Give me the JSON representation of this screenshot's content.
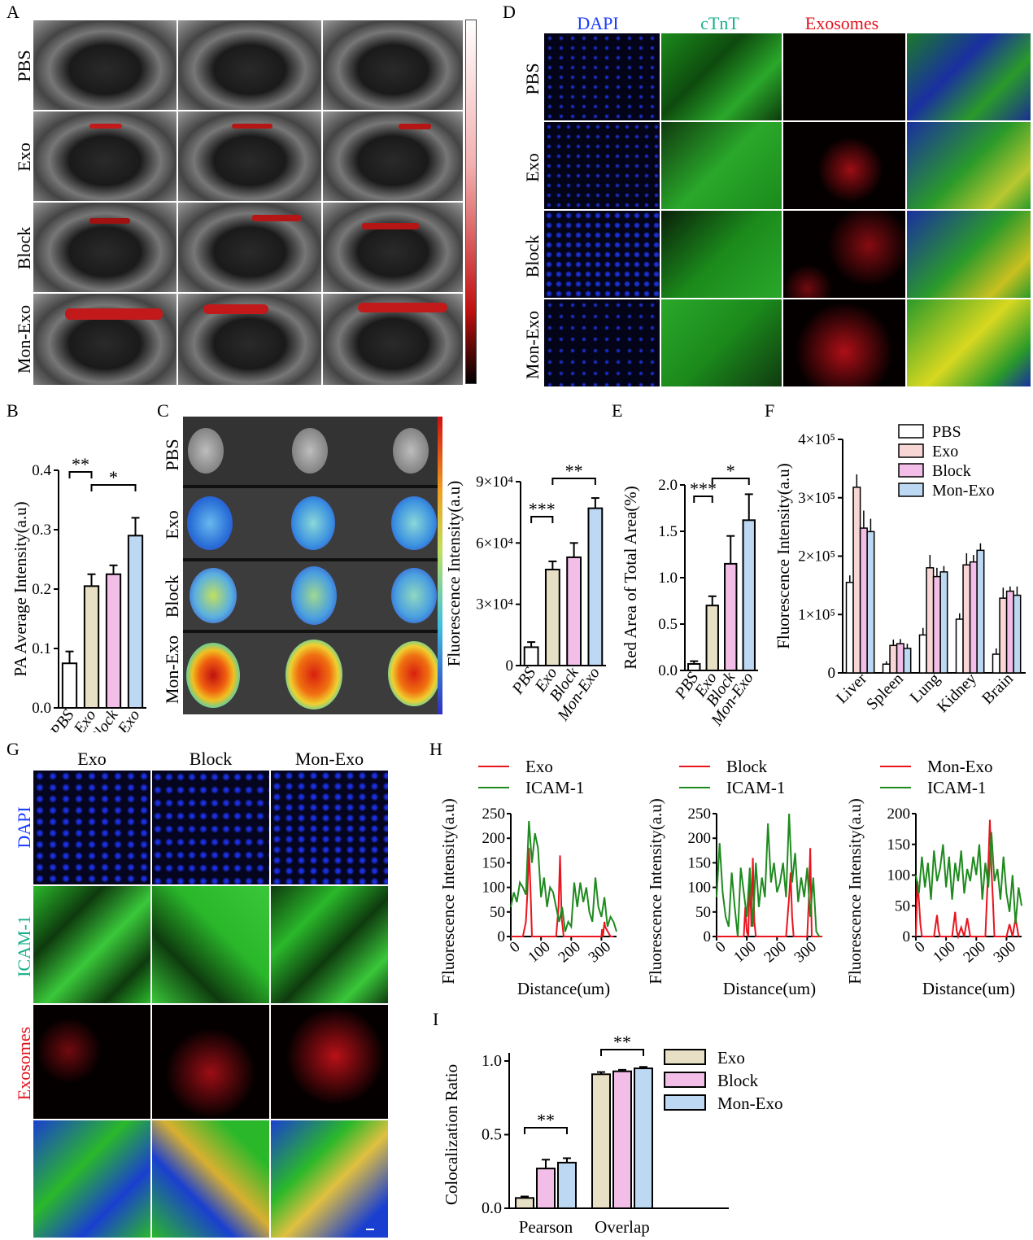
{
  "panels": {
    "A": {
      "label": "A",
      "rows": [
        "PBS",
        "Exo",
        "Block",
        "Mon-Exo"
      ]
    },
    "B": {
      "label": "B"
    },
    "C": {
      "label": "C",
      "rows": [
        "PBS",
        "Exo",
        "Block",
        "Mon-Exo"
      ],
      "colorbar_label": "Fluorescence Intensity(a.u)"
    },
    "D": {
      "label": "D",
      "cols": [
        "DAPI",
        "cTnT",
        "Exosomes"
      ],
      "rows": [
        "PBS",
        "Exo",
        "Block",
        "Mon-Exo"
      ],
      "col_colors": [
        "#1a3cff",
        "#18b08a",
        "#e0141e"
      ]
    },
    "E": {
      "label": "E"
    },
    "F": {
      "label": "F"
    },
    "G": {
      "label": "G",
      "cols": [
        "Exo",
        "Block",
        "Mon-Exo"
      ],
      "rows": [
        "DAPI",
        "ICAM-1",
        "Exosomes"
      ],
      "row_colors": [
        "#1a3cff",
        "#18b08a",
        "#e0141e"
      ]
    },
    "H": {
      "label": "H"
    },
    "I": {
      "label": "I"
    }
  },
  "chart_data": [
    {
      "id": "B",
      "type": "bar",
      "ylabel": "PA Average Intensity(a.u)",
      "categories": [
        "PBS",
        "Exo",
        "Block",
        "Mon-Exo"
      ],
      "values": [
        0.075,
        0.205,
        0.225,
        0.29
      ],
      "errors": [
        0.02,
        0.02,
        0.015,
        0.03
      ],
      "colors": [
        "#ffffff",
        "#e8e0c4",
        "#f2bde6",
        "#bcd8f2"
      ],
      "ylim": [
        0,
        0.4
      ],
      "yticks": [
        "0.0",
        "0.1",
        "0.2",
        "0.3",
        "0.4"
      ],
      "significance": [
        {
          "from": 0,
          "to": 1,
          "label": "**"
        },
        {
          "from": 1,
          "to": 3,
          "label": "*"
        }
      ]
    },
    {
      "id": "C",
      "type": "bar",
      "ylabel": "Fluorescence Intensity(a.u)",
      "categories": [
        "PBS",
        "Exo",
        "Block",
        "Mon-Exo"
      ],
      "values": [
        9000,
        47000,
        53000,
        77000
      ],
      "errors": [
        2500,
        4000,
        7000,
        5000
      ],
      "colors": [
        "#ffffff",
        "#e8e0c4",
        "#f2bde6",
        "#bcd8f2"
      ],
      "ylim": [
        0,
        90000
      ],
      "yticks": [
        "0",
        "3×10⁴",
        "6×10⁴",
        "9×10⁴"
      ],
      "significance": [
        {
          "from": 0,
          "to": 1,
          "label": "***"
        },
        {
          "from": 1,
          "to": 3,
          "label": "**"
        }
      ]
    },
    {
      "id": "E",
      "type": "bar",
      "ylabel": "Red Area of Total Area(%)",
      "categories": [
        "PBS",
        "Exo",
        "Block",
        "Mon-Exo"
      ],
      "values": [
        0.07,
        0.7,
        1.15,
        1.62
      ],
      "errors": [
        0.03,
        0.1,
        0.3,
        0.28
      ],
      "colors": [
        "#ffffff",
        "#e8e0c4",
        "#f2bde6",
        "#bcd8f2"
      ],
      "ylim": [
        0,
        2.0
      ],
      "yticks": [
        "0.0",
        "0.5",
        "1.0",
        "1.5",
        "2.0"
      ],
      "significance": [
        {
          "from": 0,
          "to": 1,
          "label": "***"
        },
        {
          "from": 1,
          "to": 3,
          "label": "*"
        }
      ]
    },
    {
      "id": "F",
      "type": "bar",
      "ylabel": "Fluorescence Intensity(a.u)",
      "categories": [
        "Liver",
        "Spleen",
        "Lung",
        "Kidney",
        "Brain"
      ],
      "series": [
        {
          "name": "PBS",
          "color": "#ffffff",
          "values": [
            155000,
            15000,
            65000,
            92000,
            32000
          ],
          "errors": [
            12000,
            5000,
            12000,
            10000,
            10000
          ]
        },
        {
          "name": "Exo",
          "color": "#f9d6d6",
          "values": [
            318000,
            47000,
            180000,
            185000,
            128000
          ],
          "errors": [
            22000,
            10000,
            22000,
            20000,
            18000
          ]
        },
        {
          "name": "Block",
          "color": "#f2bde6",
          "values": [
            248000,
            50000,
            165000,
            190000,
            140000
          ],
          "errors": [
            30000,
            8000,
            15000,
            12000,
            8000
          ]
        },
        {
          "name": "Mon-Exo",
          "color": "#bcd8f2",
          "values": [
            242000,
            42000,
            173000,
            210000,
            133000
          ],
          "errors": [
            22000,
            8000,
            10000,
            12000,
            15000
          ]
        }
      ],
      "ylim": [
        0,
        400000
      ],
      "yticks": [
        "0",
        "1×10⁵",
        "2×10⁵",
        "3×10⁵",
        "4×10⁵"
      ]
    },
    {
      "id": "H1",
      "type": "line",
      "xlabel": "Distance(um)",
      "ylabel": "Fluorescence Intensity(a.u)",
      "xlim": [
        0,
        350
      ],
      "ylim": [
        0,
        250
      ],
      "xticks": [
        "0",
        "100",
        "200",
        "300"
      ],
      "yticks": [
        "0",
        "50",
        "100",
        "150",
        "200",
        "250"
      ],
      "series": [
        {
          "name": "Exo",
          "color": "#e8141e",
          "x": [
            0,
            40,
            50,
            55,
            60,
            65,
            70,
            150,
            158,
            163,
            168,
            175,
            250,
            300,
            302,
            305,
            310,
            312,
            330,
            340
          ],
          "y": [
            0,
            0,
            30,
            90,
            180,
            100,
            0,
            0,
            60,
            165,
            40,
            0,
            0,
            0,
            15,
            0,
            30,
            20,
            0,
            0
          ]
        },
        {
          "name": "ICAM-1",
          "color": "#1f8a1f",
          "x": [
            0,
            10,
            20,
            30,
            40,
            50,
            60,
            70,
            80,
            90,
            100,
            110,
            120,
            130,
            140,
            150,
            160,
            170,
            180,
            190,
            200,
            210,
            220,
            230,
            240,
            250,
            260,
            270,
            280,
            290,
            300,
            310,
            320,
            330,
            340,
            350
          ],
          "y": [
            60,
            90,
            70,
            110,
            100,
            85,
            235,
            150,
            210,
            180,
            80,
            120,
            60,
            100,
            90,
            60,
            30,
            60,
            10,
            30,
            20,
            110,
            60,
            110,
            70,
            100,
            50,
            30,
            120,
            60,
            40,
            80,
            20,
            40,
            30,
            10
          ]
        }
      ]
    },
    {
      "id": "H2",
      "type": "line",
      "xlabel": "Distance(um)",
      "ylabel": "Fluorescence Intensity(a.u)",
      "xlim": [
        0,
        350
      ],
      "ylim": [
        0,
        250
      ],
      "xticks": [
        "0",
        "100",
        "200",
        "300"
      ],
      "yticks": [
        "0",
        "50",
        "100",
        "150",
        "200",
        "250"
      ],
      "series": [
        {
          "name": "Block",
          "color": "#e8141e",
          "x": [
            0,
            90,
            95,
            100,
            105,
            110,
            115,
            120,
            125,
            130,
            200,
            230,
            240,
            245,
            250,
            255,
            300,
            305,
            310,
            315,
            350
          ],
          "y": [
            0,
            0,
            60,
            10,
            0,
            130,
            20,
            160,
            30,
            0,
            0,
            0,
            80,
            130,
            40,
            0,
            0,
            70,
            180,
            0,
            0
          ]
        },
        {
          "name": "ICAM-1",
          "color": "#1f8a1f",
          "x": [
            0,
            10,
            20,
            30,
            40,
            50,
            60,
            70,
            80,
            90,
            100,
            110,
            120,
            130,
            140,
            150,
            160,
            170,
            180,
            190,
            200,
            210,
            220,
            230,
            240,
            250,
            260,
            270,
            280,
            290,
            300,
            310,
            320,
            330,
            340
          ],
          "y": [
            80,
            190,
            90,
            40,
            20,
            130,
            60,
            0,
            140,
            90,
            40,
            140,
            20,
            150,
            60,
            120,
            80,
            230,
            110,
            150,
            90,
            110,
            150,
            80,
            250,
            110,
            170,
            70,
            120,
            80,
            140,
            40,
            120,
            10,
            0
          ]
        }
      ]
    },
    {
      "id": "H3",
      "type": "line",
      "xlabel": "Distance(um)",
      "ylabel": "Fluorescence Intensity(a.u)",
      "xlim": [
        0,
        350
      ],
      "ylim": [
        0,
        200
      ],
      "xticks": [
        "0",
        "100",
        "200",
        "300"
      ],
      "yticks": [
        "0",
        "50",
        "100",
        "150",
        "200"
      ],
      "series": [
        {
          "name": "Mon-Exo",
          "color": "#e8141e",
          "x": [
            0,
            5,
            10,
            15,
            20,
            30,
            60,
            70,
            75,
            80,
            120,
            130,
            135,
            140,
            150,
            160,
            170,
            180,
            200,
            230,
            240,
            245,
            250,
            255,
            260,
            270,
            300,
            310,
            320,
            330,
            340
          ],
          "y": [
            0,
            90,
            60,
            20,
            0,
            0,
            0,
            35,
            10,
            0,
            0,
            40,
            10,
            0,
            15,
            0,
            30,
            0,
            0,
            0,
            120,
            190,
            110,
            60,
            0,
            0,
            0,
            20,
            0,
            30,
            0
          ]
        },
        {
          "name": "ICAM-1",
          "color": "#1f8a1f",
          "x": [
            0,
            10,
            20,
            30,
            40,
            50,
            60,
            70,
            80,
            90,
            100,
            110,
            120,
            130,
            140,
            150,
            160,
            170,
            180,
            190,
            200,
            210,
            220,
            230,
            240,
            250,
            260,
            270,
            280,
            290,
            300,
            310,
            320,
            330,
            340,
            350
          ],
          "y": [
            100,
            70,
            130,
            80,
            120,
            60,
            140,
            90,
            110,
            150,
            80,
            130,
            60,
            120,
            90,
            140,
            70,
            110,
            90,
            130,
            100,
            150,
            60,
            120,
            80,
            170,
            90,
            110,
            60,
            130,
            70,
            40,
            100,
            20,
            80,
            50
          ]
        }
      ]
    },
    {
      "id": "I",
      "type": "bar",
      "ylabel": "Colocalization Ratio",
      "categories": [
        "Pearson",
        "Overlap"
      ],
      "series": [
        {
          "name": "Exo",
          "color": "#e8e0c4",
          "values": [
            0.07,
            0.91
          ],
          "errors": [
            0.01,
            0.015
          ]
        },
        {
          "name": "Block",
          "color": "#f2bde6",
          "values": [
            0.27,
            0.93
          ],
          "errors": [
            0.06,
            0.01
          ]
        },
        {
          "name": "Mon-Exo",
          "color": "#bcd8f2",
          "values": [
            0.31,
            0.95
          ],
          "errors": [
            0.03,
            0.01
          ]
        }
      ],
      "ylim": [
        0,
        1.0
      ],
      "yticks": [
        "0.0",
        "0.5",
        "1.0"
      ],
      "significance": [
        {
          "group": 0,
          "label": "**"
        },
        {
          "group": 1,
          "label": "**"
        }
      ]
    }
  ]
}
